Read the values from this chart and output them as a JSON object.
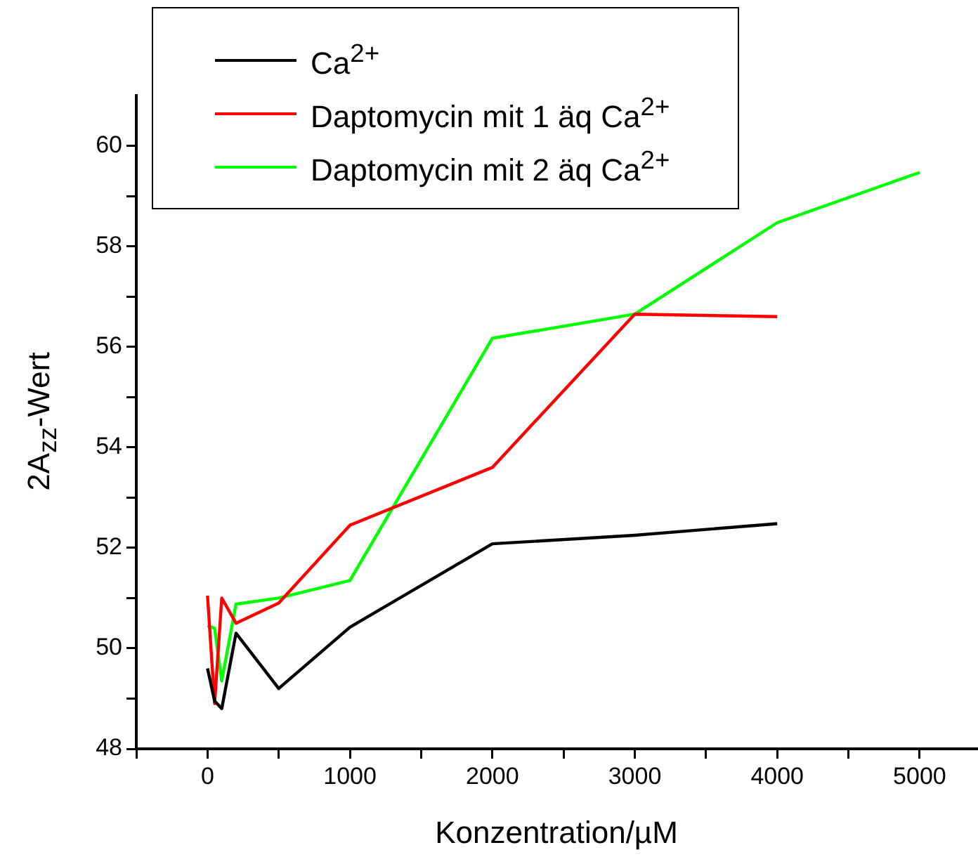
{
  "chart_data": {
    "type": "line",
    "xlabel": "Konzentration/µM",
    "ylabel": "2A$_{zz}$-Wert",
    "x": [
      0,
      50,
      100,
      200,
      500,
      1000,
      2000,
      3000,
      4000,
      5000
    ],
    "series": [
      {
        "name": "Ca$^{2+}$",
        "color": "#000000",
        "values": [
          49.6,
          48.95,
          48.8,
          50.3,
          49.2,
          50.42,
          52.08,
          52.25,
          52.48,
          null
        ]
      },
      {
        "name": "Daptomycin mit 1 äq Ca$^{2+}$",
        "color": "#ff0000",
        "values": [
          51.05,
          48.9,
          51.0,
          50.5,
          50.9,
          52.45,
          53.6,
          56.65,
          56.6,
          null
        ]
      },
      {
        "name": "Daptomycin mit 2 äq Ca$^{2+}$",
        "color": "#00ff00",
        "values": [
          50.45,
          50.4,
          49.35,
          50.88,
          51.0,
          51.35,
          56.17,
          56.65,
          58.47,
          59.47
        ]
      }
    ],
    "xlim": [
      -500,
      5400
    ],
    "xticks": [
      {
        "value": -500,
        "label": null
      },
      0,
      {
        "value": 500,
        "label": null
      },
      1000,
      {
        "value": 1500,
        "label": null
      },
      2000,
      {
        "value": 2500,
        "label": null
      },
      3000,
      {
        "value": 3500,
        "label": null
      },
      4000,
      {
        "value": 4500,
        "label": null
      },
      5000
    ],
    "ylim": [
      48,
      61
    ],
    "yticks": [
      48,
      {
        "value": 49,
        "label": null
      },
      50,
      {
        "value": 51,
        "label": null
      },
      52,
      {
        "value": 53,
        "label": null
      },
      54,
      {
        "value": 55,
        "label": null
      },
      56,
      {
        "value": 57,
        "label": null
      },
      58,
      {
        "value": 59,
        "label": null
      },
      60
    ],
    "grid": false,
    "legend": "top left",
    "marker": "none",
    "line_style": "solid"
  }
}
